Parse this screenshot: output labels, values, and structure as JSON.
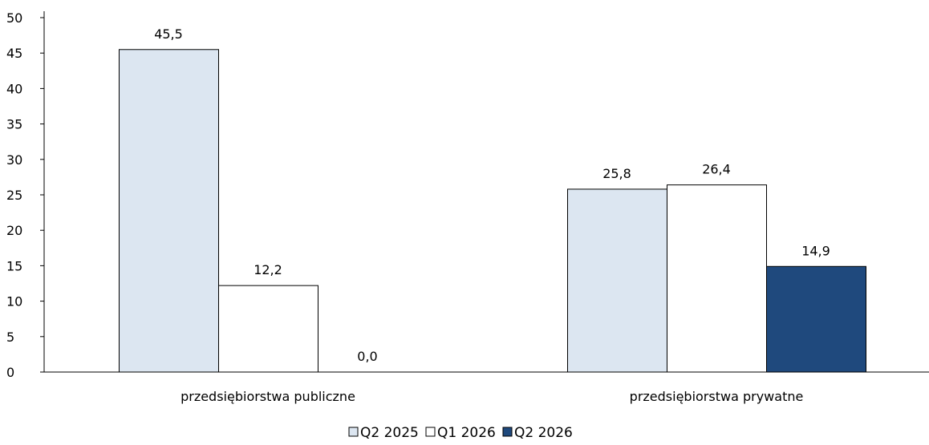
{
  "chart_data": {
    "type": "bar",
    "title": "",
    "xlabel": "",
    "ylabel": "",
    "ylim": [
      0,
      50
    ],
    "yticks": [
      0,
      5,
      10,
      15,
      20,
      25,
      30,
      35,
      40,
      45,
      50
    ],
    "grid": false,
    "legend": "bottom",
    "categories": [
      "przedsiębiorstwa publiczne",
      "przedsiębiorstwa prywatne"
    ],
    "series": [
      {
        "name": "Q2 2025",
        "values": [
          45.5,
          25.8
        ],
        "color": "#dce6f1",
        "stroke": "#000000"
      },
      {
        "name": "Q1 2026",
        "values": [
          12.2,
          26.4
        ],
        "color": "#ffffff",
        "stroke": "#000000"
      },
      {
        "name": "Q2 2026",
        "values": [
          0.0,
          14.9
        ],
        "color": "#1f497d",
        "stroke": "#000000"
      }
    ]
  }
}
